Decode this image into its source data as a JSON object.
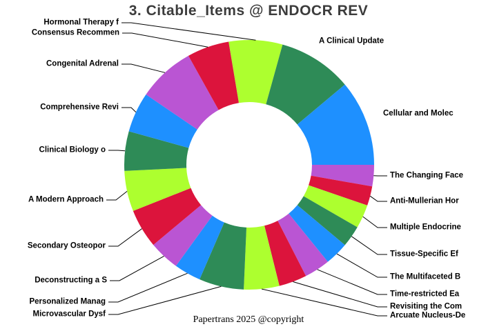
{
  "title": "3. Citable_Items @ ENDOCR REV",
  "footer": "Papertrans 2025 @copyright",
  "chart_data": {
    "type": "pie",
    "subtype": "donut",
    "title": "3. Citable_Items @ ENDOCR REV",
    "legend_position": "none",
    "value_note": "arc size in degrees, estimated from pixels (no numeric data labels shown in figure)",
    "start_angle_deg_from_north": -9.5,
    "palette": [
      "#ADFF2F",
      "#2E8B57",
      "#1E90FF",
      "#BA55D3",
      "#DC143C"
    ],
    "slices": [
      {
        "label": "Hormonal Therapy f",
        "value": 25,
        "color": "#ADFF2F"
      },
      {
        "label": "A Clinical Update",
        "value": 34.5,
        "color": "#2E8B57"
      },
      {
        "label": "Cellular and Molec",
        "value": 40,
        "color": "#1E90FF"
      },
      {
        "label": "The Changing Face",
        "value": 10,
        "color": "#BA55D3"
      },
      {
        "label": "Anti-Mullerian Hor",
        "value": 9,
        "color": "#DC143C"
      },
      {
        "label": "Multiple Endocrine",
        "value": 11,
        "color": "#ADFF2F"
      },
      {
        "label": "Tissue-Specific Ef",
        "value": 10,
        "color": "#2E8B57"
      },
      {
        "label": "The Multifaceted B",
        "value": 11,
        "color": "#1E90FF"
      },
      {
        "label": "Time-restricted Ea",
        "value": 12,
        "color": "#BA55D3"
      },
      {
        "label": "Revisiting the Com",
        "value": 13,
        "color": "#DC143C"
      },
      {
        "label": "Arcuate Nucleus-De",
        "value": 16.5,
        "color": "#ADFF2F"
      },
      {
        "label": "Microvascular Dysf",
        "value": 20.9,
        "color": "#2E8B57"
      },
      {
        "label": "Personalized Manag",
        "value": 12.5,
        "color": "#1E90FF"
      },
      {
        "label": "Deconstructing a S",
        "value": 14.2,
        "color": "#BA55D3"
      },
      {
        "label": "Secondary Osteopor",
        "value": 18.2,
        "color": "#DC143C"
      },
      {
        "label": "A Modern Approach",
        "value": 18.9,
        "color": "#ADFF2F"
      },
      {
        "label": "Clinical Biology o",
        "value": 18.4,
        "color": "#2E8B57"
      },
      {
        "label": "Comprehensive Revi",
        "value": 18.7,
        "color": "#1E90FF"
      },
      {
        "label": "Congenital Adrenal",
        "value": 26.6,
        "color": "#BA55D3"
      },
      {
        "label": "Consensus Recommen",
        "value": 19.6,
        "color": "#DC143C"
      }
    ]
  }
}
